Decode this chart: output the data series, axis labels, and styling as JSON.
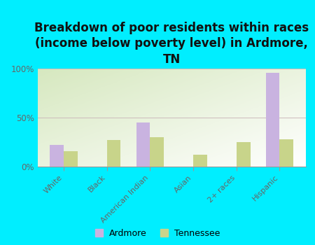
{
  "title": "Breakdown of poor residents within races\n(income below poverty level) in Ardmore,\nTN",
  "categories": [
    "White",
    "Black",
    "American Indian",
    "Asian",
    "2+ races",
    "Hispanic"
  ],
  "ardmore_values": [
    22,
    0,
    45,
    0,
    0,
    96
  ],
  "tennessee_values": [
    16,
    27,
    30,
    12,
    25,
    28
  ],
  "ardmore_color": "#c9b3e0",
  "tennessee_color": "#c8d48a",
  "background_outer": "#00eeff",
  "gradient_colors": [
    "#d6e8c0",
    "#f0f5e8",
    "#f8faf0",
    "#ffffff"
  ],
  "ylim": [
    0,
    100
  ],
  "yticks": [
    0,
    50,
    100
  ],
  "ytick_labels": [
    "0%",
    "50%",
    "100%"
  ],
  "bar_width": 0.32,
  "title_fontsize": 12,
  "tick_label_fontsize": 8,
  "ytick_fontsize": 8.5,
  "legend_labels": [
    "Ardmore",
    "Tennessee"
  ],
  "legend_fontsize": 9,
  "title_color": "#111111",
  "tick_color": "#666666"
}
